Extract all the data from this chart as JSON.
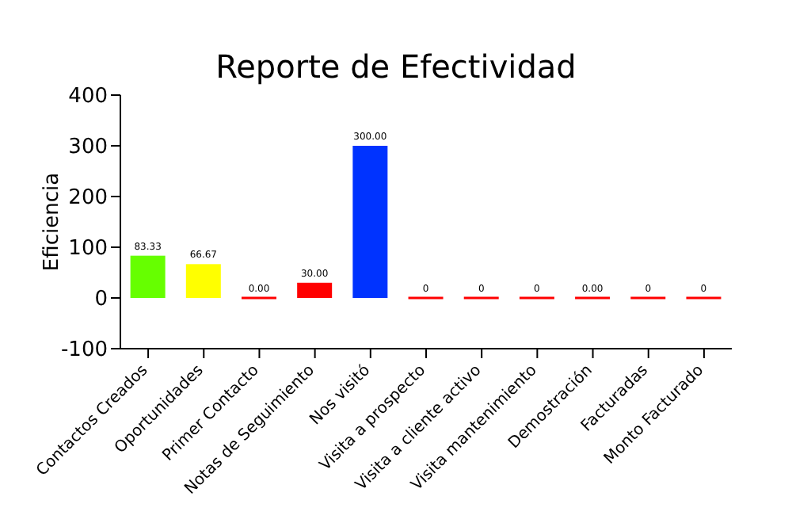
{
  "chart_data": {
    "type": "bar",
    "title": "Reporte de Efectividad",
    "ylabel": "Eficiencia",
    "categories": [
      "Contactos Creados",
      "Oportunidades",
      "Primer Contacto",
      "Notas de Seguimiento",
      "Nos visitó",
      "Visita a prospecto",
      "Visita a cliente activo",
      "Visita mantenimiento",
      "Demostración",
      "Facturadas",
      "Monto Facturado"
    ],
    "values": [
      83.33,
      66.67,
      0,
      30,
      300,
      0,
      0,
      0,
      0,
      0,
      0
    ],
    "value_labels": [
      "83.33",
      "66.67",
      "0.00",
      "30.00",
      "300.00",
      "0",
      "0",
      "0",
      "0.00",
      "0",
      "0"
    ],
    "colors": [
      "#66ff00",
      "#ffff00",
      "#ff0000",
      "#ff0000",
      "#0033ff",
      "#ff0000",
      "#ff0000",
      "#ff0000",
      "#ff0000",
      "#ff0000",
      "#ff0000"
    ],
    "ylim": [
      -100,
      400
    ],
    "yticks": [
      -100,
      0,
      100,
      200,
      300,
      400
    ]
  }
}
